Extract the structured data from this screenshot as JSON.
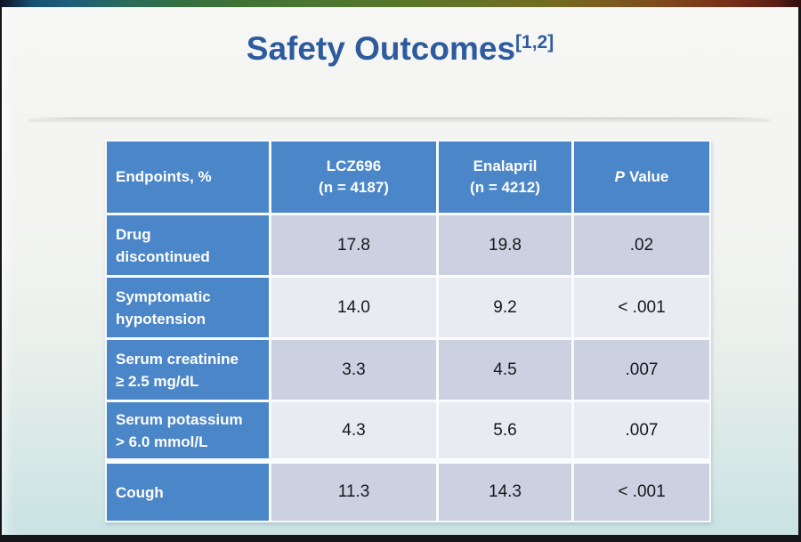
{
  "slide": {
    "title": {
      "text": "Safety Outcomes",
      "superscript": "[1,2]",
      "color": "#2d5b9e"
    },
    "table": {
      "header": {
        "col1": "Endpoints, %",
        "col2_line1": "LCZ696",
        "col2_line2": "(n = 4187)",
        "col3_line1": "Enalapril",
        "col3_line2": "(n = 4212)",
        "p_italic": "P",
        "p_word": "Value"
      },
      "rows": [
        {
          "label": "Drug discontinued",
          "label_lines": [
            "Drug",
            "discontinued"
          ],
          "lcz696": "17.8",
          "enalapril": "19.8",
          "p_value": ".02"
        },
        {
          "label": "Symptomatic hypotension",
          "label_lines": [
            "Symptomatic",
            "hypotension"
          ],
          "lcz696": "14.0",
          "enalapril": "9.2",
          "p_value": "< .001"
        },
        {
          "label": "Serum creatinine ≥ 2.5 mg/dL",
          "label_lines": [
            "Serum creatinine",
            "≥ 2.5 mg/dL"
          ],
          "lcz696": "3.3",
          "enalapril": "4.5",
          "p_value": ".007"
        },
        {
          "label": "Serum potassium > 6.0 mmol/L",
          "label_lines": [
            "Serum potassium",
            "> 6.0 mmol/L"
          ],
          "lcz696": "4.3",
          "enalapril": "5.6",
          "p_value": ".007"
        },
        {
          "label": "Cough",
          "label_lines": [
            "Cough"
          ],
          "lcz696": "11.3",
          "enalapril": "14.3",
          "p_value": "< .001"
        }
      ],
      "colors": {
        "header_bg": "#4a86c8",
        "row_dark": "#ccd1e2",
        "row_light": "#e9ebf2",
        "grid_gap": "#fafbfd",
        "text_dark": "#17181c"
      }
    },
    "colors": {
      "title_blue": "#2d5b9e",
      "background_top": "#f6f6f4",
      "background_bottom": "#c9e2e3",
      "frame_border": "#16161b"
    }
  }
}
